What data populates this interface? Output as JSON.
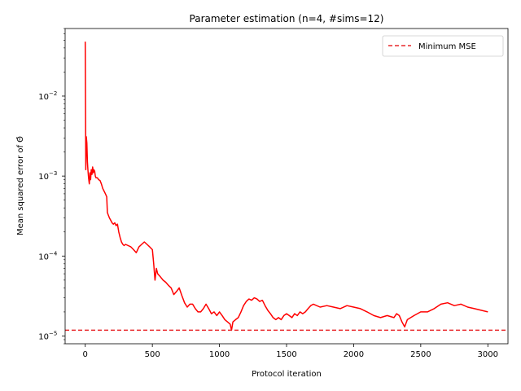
{
  "chart_data": {
    "type": "line",
    "title": "Parameter estimation (n=4, #sims=12)",
    "xlabel": "Protocol iteration",
    "ylabel": "Mean squared error of Θ̄",
    "xlim": [
      -150,
      3150
    ],
    "ylim": [
      8e-06,
      0.07
    ],
    "yscale": "log",
    "xticks": [
      0,
      500,
      1000,
      1500,
      2000,
      2500,
      3000
    ],
    "xtick_labels": [
      "0",
      "500",
      "1000",
      "1500",
      "2000",
      "2500",
      "3000"
    ],
    "yticks": [
      1e-05,
      0.0001,
      0.001,
      0.01
    ],
    "ytick_labels": [
      "10",
      "10",
      "10",
      "10"
    ],
    "ytick_exponents": [
      "−5",
      "−4",
      "−3",
      "−2"
    ],
    "grid": false,
    "legend_position": "top-right",
    "series": [
      {
        "name": "",
        "color": "#ff0000",
        "style": "solid",
        "x": [
          0,
          4,
          8,
          12,
          16,
          20,
          25,
          30,
          35,
          40,
          45,
          50,
          55,
          60,
          65,
          70,
          75,
          80,
          90,
          100,
          110,
          120,
          130,
          140,
          150,
          160,
          165,
          170,
          180,
          190,
          200,
          210,
          220,
          230,
          240,
          250,
          260,
          270,
          280,
          290,
          300,
          320,
          340,
          360,
          380,
          400,
          420,
          440,
          460,
          480,
          500,
          510,
          520,
          530,
          540,
          560,
          580,
          600,
          620,
          640,
          660,
          680,
          700,
          720,
          740,
          760,
          780,
          800,
          820,
          840,
          860,
          880,
          900,
          920,
          940,
          960,
          980,
          1000,
          1020,
          1040,
          1060,
          1080,
          1090,
          1100,
          1120,
          1140,
          1160,
          1180,
          1200,
          1220,
          1240,
          1260,
          1280,
          1300,
          1320,
          1340,
          1360,
          1380,
          1400,
          1420,
          1440,
          1460,
          1480,
          1500,
          1520,
          1540,
          1560,
          1580,
          1600,
          1620,
          1640,
          1660,
          1680,
          1700,
          1750,
          1800,
          1850,
          1900,
          1950,
          2000,
          2050,
          2100,
          2150,
          2200,
          2250,
          2300,
          2320,
          2340,
          2360,
          2380,
          2400,
          2450,
          2500,
          2550,
          2600,
          2650,
          2700,
          2750,
          2800,
          2850,
          2900,
          2950,
          3000
        ],
        "y": [
          0.048,
          0.0012,
          0.0031,
          0.0026,
          0.0015,
          0.0012,
          0.00095,
          0.0008,
          0.0011,
          0.0009,
          0.0012,
          0.00105,
          0.0013,
          0.0011,
          0.0012,
          0.00115,
          0.001,
          0.00095,
          0.00095,
          0.0009,
          0.00088,
          0.0008,
          0.0007,
          0.00065,
          0.0006,
          0.00055,
          0.00035,
          0.00033,
          0.0003,
          0.00028,
          0.00026,
          0.00025,
          0.00026,
          0.00024,
          0.00025,
          0.0002,
          0.00017,
          0.00015,
          0.00014,
          0.000135,
          0.00014,
          0.000135,
          0.00013,
          0.00012,
          0.00011,
          0.00013,
          0.00014,
          0.00015,
          0.00014,
          0.00013,
          0.00012,
          8e-05,
          5e-05,
          7e-05,
          6e-05,
          5.5e-05,
          5e-05,
          4.7e-05,
          4.3e-05,
          4e-05,
          3.3e-05,
          3.6e-05,
          4e-05,
          3.2e-05,
          2.6e-05,
          2.3e-05,
          2.5e-05,
          2.5e-05,
          2.2e-05,
          2e-05,
          2e-05,
          2.2e-05,
          2.5e-05,
          2.2e-05,
          1.9e-05,
          2e-05,
          1.8e-05,
          2e-05,
          1.8e-05,
          1.6e-05,
          1.5e-05,
          1.4e-05,
          1.18e-05,
          1.5e-05,
          1.6e-05,
          1.7e-05,
          2e-05,
          2.4e-05,
          2.7e-05,
          2.9e-05,
          2.8e-05,
          3e-05,
          2.9e-05,
          2.7e-05,
          2.8e-05,
          2.4e-05,
          2.1e-05,
          1.9e-05,
          1.7e-05,
          1.6e-05,
          1.7e-05,
          1.6e-05,
          1.8e-05,
          1.9e-05,
          1.8e-05,
          1.7e-05,
          1.9e-05,
          1.8e-05,
          2e-05,
          1.9e-05,
          2e-05,
          2.2e-05,
          2.4e-05,
          2.5e-05,
          2.3e-05,
          2.4e-05,
          2.3e-05,
          2.2e-05,
          2.4e-05,
          2.3e-05,
          2.2e-05,
          2e-05,
          1.8e-05,
          1.7e-05,
          1.8e-05,
          1.7e-05,
          1.9e-05,
          1.8e-05,
          1.5e-05,
          1.3e-05,
          1.6e-05,
          1.8e-05,
          2e-05,
          2e-05,
          2.2e-05,
          2.5e-05,
          2.6e-05,
          2.4e-05,
          2.5e-05,
          2.3e-05,
          2.2e-05,
          2.1e-05,
          2e-05
        ]
      },
      {
        "name": "Minimum MSE",
        "color": "#e8282b",
        "style": "dashed",
        "y_constant": 1.18e-05
      }
    ]
  }
}
